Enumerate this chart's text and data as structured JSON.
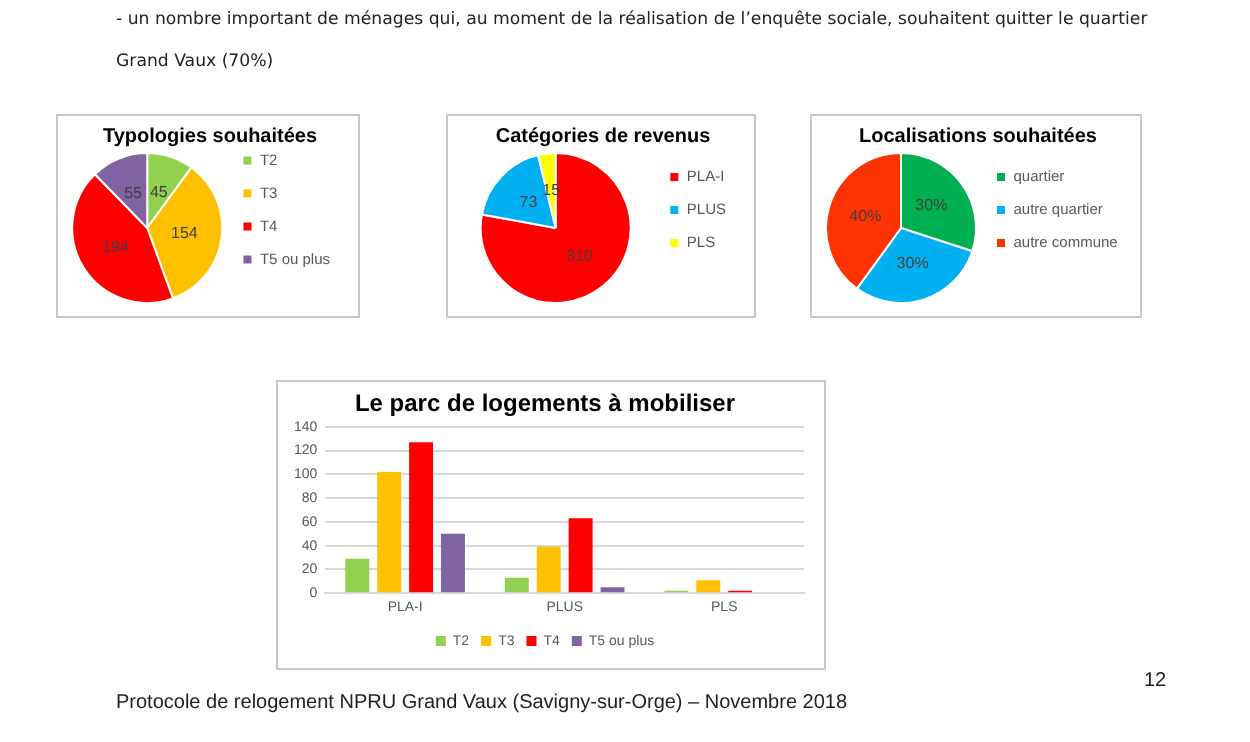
{
  "chart_data": [
    {
      "type": "pie",
      "title": "Typologies souhaitées",
      "categories": [
        "T2",
        "T3",
        "T4",
        "T5 ou plus"
      ],
      "values": [
        45,
        154,
        194,
        55
      ],
      "colors": [
        "#92d050",
        "#ffc000",
        "#ff0000",
        "#8064a2"
      ],
      "data_labels": true,
      "legend": "right",
      "annotations": [
        "- un nombre important de ménages qui, au moment de la réalisation de l’enquête sociale, souhaitent quitter le quartier Grand Vaux (70%)"
      ]
    },
    {
      "type": "pie",
      "title": "Catégories de revenus",
      "categories": [
        "PLA-I",
        "PLUS",
        "PLS"
      ],
      "values": [
        310,
        73,
        15
      ],
      "colors": [
        "#ff0000",
        "#00b0f0",
        "#ffff00"
      ],
      "data_labels": true,
      "legend": "right"
    },
    {
      "type": "pie",
      "title": "Localisations souhaitées",
      "categories": [
        "quartier",
        "autre quartier",
        "autre commune"
      ],
      "values": [
        30,
        30,
        40
      ],
      "colors": [
        "#00b050",
        "#00b0f0",
        "#ff3300"
      ],
      "value_labels": [
        "30%",
        "30%",
        "40%"
      ],
      "legend": "right"
    },
    {
      "type": "bar",
      "title": "Le parc de logements à mobiliser",
      "categories": [
        "PLA-I",
        "PLUS",
        "PLS"
      ],
      "series": [
        {
          "name": "T2",
          "color": "#92d050",
          "values": [
            29,
            13,
            2
          ]
        },
        {
          "name": "T3",
          "color": "#ffc000",
          "values": [
            102,
            39,
            11
          ]
        },
        {
          "name": "T4",
          "color": "#ff0000",
          "values": [
            127,
            63,
            2
          ]
        },
        {
          "name": "T5 ou plus",
          "color": "#8064a2",
          "values": [
            50,
            5,
            null
          ]
        }
      ],
      "ylim": [
        0,
        140
      ],
      "yticks": [
        0,
        20,
        40,
        60,
        80,
        100,
        120,
        140
      ],
      "grid": "y",
      "legend": "bottom",
      "annotations": [
        "Protocole de relogement NPRU Grand Vaux (Savigny-sur-Orge) – Novembre 2018",
        "12"
      ]
    }
  ]
}
